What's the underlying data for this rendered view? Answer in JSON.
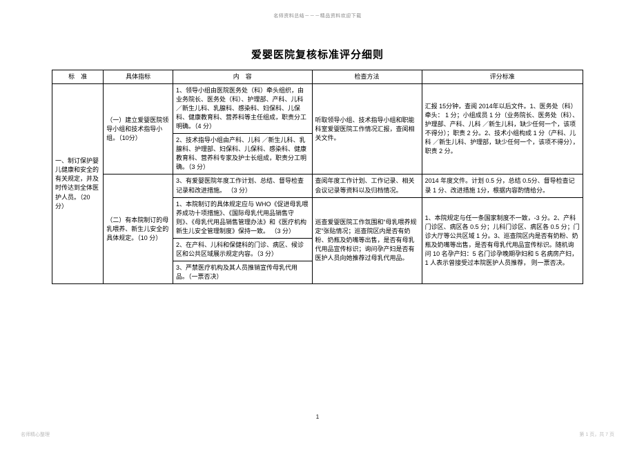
{
  "topHeader": "名师资料总结－－－精品资料欢迎下载",
  "title": "爱婴医院复核标准评分细则",
  "headers": {
    "c1": "标　准",
    "c2": "具体指标",
    "c3": "内　容",
    "c4": "检查方法",
    "c5": "评分标准"
  },
  "r_std": "一、制订保护婴儿健康和安全的有关规定，并及时传达到全体医护人员。（20 分）",
  "r1_idx": "（一）建立爱婴医院领导小组和技术指导小组。（10分）",
  "r1a_content": "1、领导小组由医院医务处（科）牵头组织，由业务院长、医务处（科）、护理部、产科、儿科／新生儿科、乳腺科、感染科、妇保科、儿保科、健康教育科、营养科等主任组成，职责分工明确。（4 分）",
  "r1b_content": "2、技术指导小组由产科、儿科 ／新生儿科、乳腺科、护理部、妇保科、儿保科、感染科、健康教育科、营养科专家及护士长组成，职责分工明确。（3 分）",
  "r1_check": "听取领导小组、技术指导小组和职能科室爱婴医院工作情况汇报，查阅相关文件。",
  "r1_score": "汇报 15分钟，查阅 2014年以后文件。1、医务处（科）牵头：  1 分；小组成员 1 分（业务院长、医务处（科）、护理部、产科、儿科 ／新生儿科，缺少任何一个，该项不得分）；职责  2 分。2、技术小组构成  1 分（产科、儿科 ／新生儿科、护理部，缺少任何一个，该项不得分），职责 2 分。",
  "r1c_content": "3、有爱婴医院年度工作计划、总结、督导检查记录和改进措施。 （3 分）",
  "r1c_check": "查阅年度工作计划、工作记录、相关会议记录等资料以及归档情况。",
  "r1c_score": "2014 年度文件。计划 0.5 分，总结 0.5分、督导检查记录  1 分、改进措施  1分，根据内容酌情给分。",
  "r2_idx": "（二）有本院制订的母乳喂养、新生儿安全的具体规定。（10 分）",
  "r2a_content": "1、本院制订的具体规定应与  WHO《促进母乳喂养成功十项措施》、《国际母乳代用品销售守则》、《母乳代用品销售管理办法》和《医疗机构新生儿安全管理制度》保持一致。 （3 分）",
  "r2b_content": "2、在产科、儿科和保健科的门诊、病区、候诊区和公共区域展示规定内容。（3 分）",
  "r2c_content": "3、严禁医疗机构及其人员推销宣传母乳代用品。（一票否决）",
  "r2_check": "巡查爱婴医院工作氛围和“母乳喂养规定”张贴情况；巡查院区内是否有奶粉、奶瓶及奶嘴等出售，是否有母乳代用品宣传标识；询问孕产妇是否有医护人员向她推荐过母乳代用品。",
  "r2_score": "1、本院规定与任一条国家制度不一致，-3 分。2、产科门诊区、病区各  0.5 分；儿科门诊区、病区各 0.5 分；门诊大厅等公共区域 1 分。3、巡查院区内是否有奶粉、奶瓶及奶嘴等出售，是否有母乳代用品宣传标识。随机询问  10 名孕产妇：5 名门诊孕晚期孕妇和  5 名病房产妇，1 人表示曾接受过本院医护人员推荐， 则一票否决。",
  "pageNum": "1",
  "footerLeft": "名师精心整理",
  "footerRight": "第 1 页，共 7 页"
}
